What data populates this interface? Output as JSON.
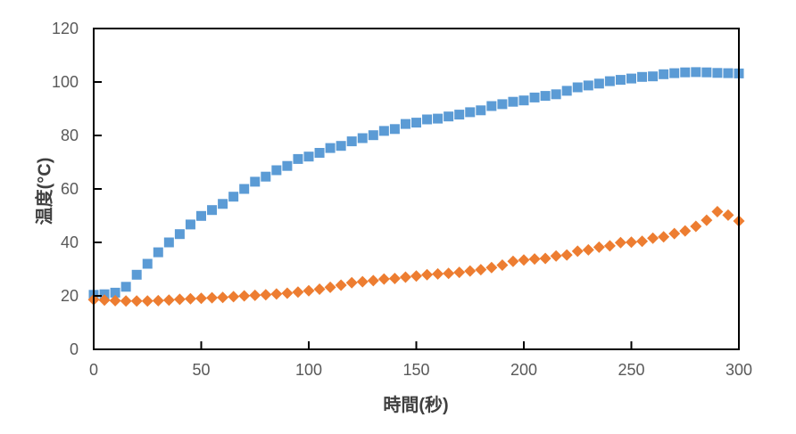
{
  "chart_data": {
    "type": "scatter",
    "title": "",
    "xlabel": "時間(秒)",
    "ylabel": "温度(°C)",
    "xlim": [
      0,
      300
    ],
    "ylim": [
      0,
      120
    ],
    "x_ticks": [
      0,
      50,
      100,
      150,
      200,
      250,
      300
    ],
    "y_ticks": [
      0,
      20,
      40,
      60,
      80,
      100,
      120
    ],
    "grid": false,
    "legend": "none",
    "plot_border": "full-box",
    "x": [
      0,
      5,
      10,
      15,
      20,
      25,
      30,
      35,
      40,
      45,
      50,
      55,
      60,
      65,
      70,
      75,
      80,
      85,
      90,
      95,
      100,
      105,
      110,
      115,
      120,
      125,
      130,
      135,
      140,
      145,
      150,
      155,
      160,
      165,
      170,
      175,
      180,
      185,
      190,
      195,
      200,
      205,
      210,
      215,
      220,
      225,
      230,
      235,
      240,
      245,
      250,
      255,
      260,
      265,
      270,
      275,
      280,
      285,
      290,
      295,
      300
    ],
    "series": [
      {
        "name": "series-1-blue-squares",
        "marker": "square",
        "color": "#5B9BD5",
        "values": [
          20.4,
          20.6,
          21.2,
          23.4,
          27.9,
          32,
          36.3,
          40,
          43.1,
          46.7,
          49.9,
          52.1,
          54.4,
          57.1,
          60,
          62.7,
          64.6,
          67,
          68.6,
          71.2,
          72.1,
          73.5,
          75.3,
          76.1,
          77.8,
          79,
          80.1,
          81.7,
          82.4,
          84.3,
          84.8,
          86,
          86.3,
          87.1,
          87.8,
          88.7,
          89.4,
          91,
          91.7,
          92.6,
          93.1,
          94.2,
          94.8,
          95.4,
          96.7,
          98,
          98.7,
          99.4,
          100.3,
          100.8,
          101.3,
          101.9,
          102.1,
          102.9,
          103.3,
          103.6,
          103.7,
          103.6,
          103.4,
          103.3,
          103.2
        ]
      },
      {
        "name": "series-2-orange-diamonds",
        "marker": "diamond",
        "color": "#ED7D31",
        "values": [
          18.6,
          18.4,
          18.2,
          18.1,
          18.1,
          18.1,
          18.2,
          18.4,
          18.7,
          18.9,
          19.1,
          19.3,
          19.4,
          19.7,
          20,
          20.2,
          20.4,
          20.7,
          21,
          21.4,
          21.9,
          22.5,
          23.2,
          24,
          24.9,
          25.3,
          25.7,
          26.3,
          26.5,
          27,
          27.4,
          27.9,
          28.2,
          28.4,
          28.8,
          29.3,
          29.8,
          30.6,
          31.5,
          32.9,
          33.4,
          33.8,
          34,
          34.9,
          35.3,
          36.7,
          37.2,
          38.2,
          38.7,
          39.9,
          40.1,
          40.4,
          41.6,
          42.1,
          43.3,
          44.3,
          46,
          48.3,
          51.5,
          50.2,
          48
        ]
      }
    ]
  },
  "colors": {
    "series1": "#5B9BD5",
    "series2": "#ED7D31",
    "axis_line": "#000000",
    "tick_label": "#595959",
    "axis_title": "#404040",
    "background": "#FFFFFF"
  }
}
